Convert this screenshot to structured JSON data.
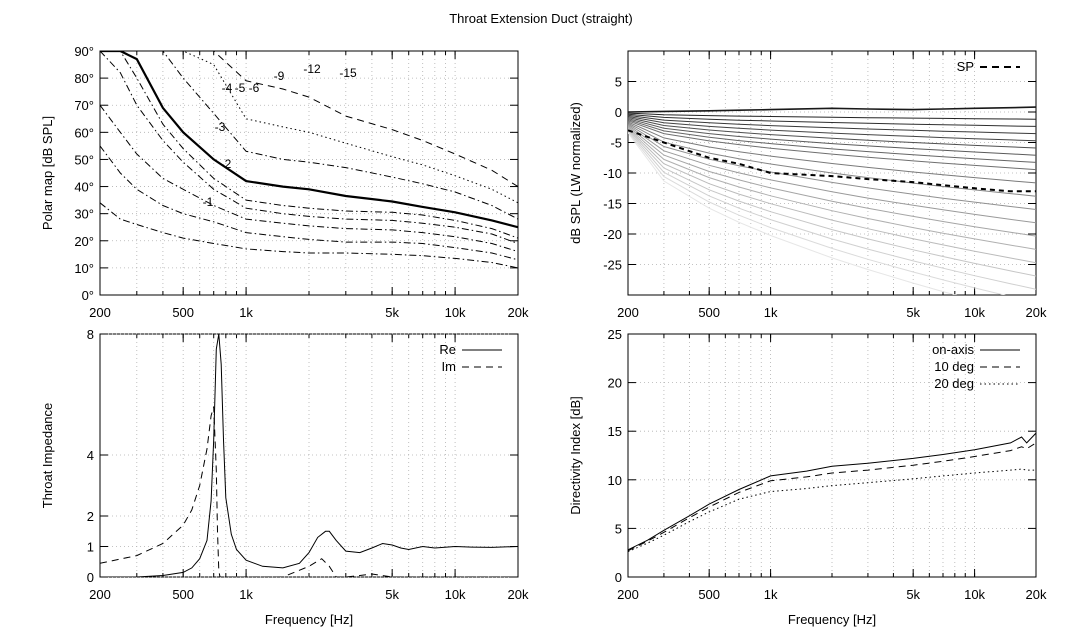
{
  "title": "Throat Extension Duct (straight)",
  "freq_ticks": [
    {
      "value": 200,
      "label": "200"
    },
    {
      "value": 500,
      "label": "500"
    },
    {
      "value": 1000,
      "label": "1k"
    },
    {
      "value": 5000,
      "label": "5k"
    },
    {
      "value": 10000,
      "label": "10k"
    },
    {
      "value": 20000,
      "label": "20k"
    }
  ],
  "chart_data": [
    {
      "id": "polar",
      "type": "heatmap",
      "title": "",
      "xlabel": "",
      "ylabel": "Polar map [dB SPL]",
      "xscale": "log",
      "xlim": [
        200,
        20000
      ],
      "ylim": [
        0,
        90
      ],
      "yticks": [
        {
          "value": 0,
          "label": "0°"
        },
        {
          "value": 10,
          "label": "10°"
        },
        {
          "value": 20,
          "label": "20°"
        },
        {
          "value": 30,
          "label": "30°"
        },
        {
          "value": 40,
          "label": "40°"
        },
        {
          "value": 50,
          "label": "50°"
        },
        {
          "value": 60,
          "label": "60°"
        },
        {
          "value": 70,
          "label": "70°"
        },
        {
          "value": 80,
          "label": "80°"
        },
        {
          "value": 90,
          "label": "90°"
        }
      ],
      "grid": true,
      "x": [
        200,
        250,
        300,
        400,
        500,
        700,
        1000,
        1500,
        2000,
        3000,
        5000,
        7000,
        10000,
        15000,
        20000
      ],
      "contours": [
        {
          "label": "-1",
          "style": "dashdot",
          "values": [
            34,
            28,
            26,
            23,
            21,
            19,
            17,
            16,
            15.5,
            15.5,
            15,
            14.5,
            13.5,
            12,
            10
          ]
        },
        {
          "label": "-2",
          "style": "dashdot",
          "values": [
            55,
            45,
            39,
            33,
            30,
            27,
            23,
            21.5,
            20.5,
            19.5,
            19.5,
            19,
            17.5,
            15.5,
            13
          ]
        },
        {
          "label": "-3",
          "style": "dashdot",
          "values": [
            70,
            60,
            52,
            43,
            39,
            33,
            28,
            26.5,
            25.5,
            24.5,
            24,
            23,
            21.5,
            19,
            16
          ]
        },
        {
          "label": "-4",
          "style": "dashdot",
          "values": [
            90,
            82,
            70,
            57,
            49,
            39,
            32,
            30,
            29,
            28,
            27.5,
            26.5,
            25,
            22.5,
            19
          ]
        },
        {
          "label": "-5",
          "style": "dashdot",
          "values": [
            90,
            90,
            80,
            63,
            54,
            43,
            35,
            33,
            32,
            31,
            30.5,
            29.5,
            27.5,
            24.5,
            21
          ]
        },
        {
          "label": "-6",
          "style": "thick",
          "values": [
            90,
            90,
            87,
            69,
            60,
            50,
            42,
            40,
            39,
            36.5,
            34.5,
            32.5,
            30.5,
            27.5,
            25
          ]
        },
        {
          "label": "-9",
          "style": "dashdot",
          "values": [
            90,
            90,
            90,
            90,
            80,
            67,
            53,
            50,
            49,
            47,
            43.5,
            41,
            38,
            33,
            28
          ]
        },
        {
          "label": "-12",
          "style": "dotted",
          "values": [
            90,
            90,
            90,
            90,
            90,
            85,
            65,
            62,
            60,
            56,
            51,
            48,
            44,
            39,
            34
          ]
        },
        {
          "label": "-15",
          "style": "dashed",
          "values": [
            90,
            90,
            90,
            90,
            90,
            90,
            79,
            76,
            73,
            66,
            61,
            57,
            52,
            46,
            40
          ]
        }
      ]
    },
    {
      "id": "spl",
      "type": "line",
      "title": "",
      "xlabel": "",
      "ylabel": "dB SPL (LW normalized)",
      "xscale": "log",
      "xlim": [
        200,
        20000
      ],
      "ylim": [
        -30,
        10
      ],
      "yticks": [
        {
          "value": 5,
          "label": "5"
        },
        {
          "value": 0,
          "label": "0"
        },
        {
          "value": -5,
          "label": "-5"
        },
        {
          "value": -10,
          "label": "-10"
        },
        {
          "value": -15,
          "label": "-15"
        },
        {
          "value": -20,
          "label": "-20"
        },
        {
          "value": -25,
          "label": "-25"
        }
      ],
      "grid": true,
      "legend": "top-right",
      "x": [
        200,
        300,
        500,
        700,
        1000,
        2000,
        3000,
        5000,
        7000,
        10000,
        15000,
        20000
      ],
      "on_axis": [
        0,
        0.1,
        0.2,
        0.3,
        0.4,
        0.6,
        0.5,
        0.4,
        0.5,
        0.6,
        0.7,
        0.8
      ],
      "off_axis_end_db": [
        0,
        -1,
        -2,
        -3,
        -4,
        -5,
        -6,
        -7,
        -8,
        -10,
        -12,
        -14,
        -16,
        -18,
        -20,
        -22,
        -24,
        -26,
        -28,
        -30
      ],
      "series": [
        {
          "name": "SP",
          "style": "dashed",
          "values": [
            -3,
            -5,
            -7.5,
            -8.5,
            -10,
            -10.5,
            -11,
            -11.5,
            -12,
            -12.5,
            -13,
            -13
          ]
        }
      ]
    },
    {
      "id": "impedance",
      "type": "line",
      "title": "",
      "xlabel": "Frequency [Hz]",
      "ylabel": "Throat Impedance",
      "xscale": "log",
      "xlim": [
        200,
        20000
      ],
      "ylim": [
        0,
        8
      ],
      "yticks": [
        {
          "value": 0,
          "label": "0"
        },
        {
          "value": 1,
          "label": "1"
        },
        {
          "value": 2,
          "label": "2"
        },
        {
          "value": 4,
          "label": "4"
        },
        {
          "value": 8,
          "label": "8"
        }
      ],
      "grid": true,
      "legend": "top-right",
      "series": [
        {
          "name": "Re",
          "style": "solid",
          "x": [
            200,
            300,
            400,
            500,
            550,
            600,
            650,
            680,
            700,
            720,
            740,
            760,
            780,
            800,
            850,
            900,
            1000,
            1200,
            1500,
            1800,
            2000,
            2200,
            2400,
            2500,
            2700,
            3000,
            3500,
            4000,
            4500,
            5000,
            5500,
            6000,
            7000,
            8000,
            10000,
            12000,
            15000,
            20000
          ],
          "values": [
            0,
            0,
            0.05,
            0.15,
            0.3,
            0.6,
            1.2,
            2.5,
            4.5,
            7.5,
            8,
            7,
            4.5,
            2.6,
            1.4,
            0.9,
            0.55,
            0.35,
            0.3,
            0.45,
            0.8,
            1.3,
            1.5,
            1.5,
            1.2,
            0.85,
            0.8,
            0.95,
            1.1,
            1.05,
            0.95,
            0.9,
            1,
            0.95,
            1,
            0.98,
            0.97,
            1
          ]
        },
        {
          "name": "Im",
          "style": "dashed",
          "x": [
            200,
            300,
            400,
            500,
            550,
            600,
            650,
            680,
            700,
            720,
            730,
            740,
            750,
            760,
            800,
            1000,
            1500,
            2000,
            2300,
            2500,
            2700,
            3000,
            3500,
            4000,
            5000,
            7000,
            10000,
            20000
          ],
          "values": [
            0.45,
            0.7,
            1.1,
            1.7,
            2.2,
            3,
            4.2,
            5.3,
            5.6,
            3.5,
            1.5,
            0.2,
            0,
            0,
            0,
            0,
            0,
            0.35,
            0.6,
            0.35,
            0,
            0,
            0.05,
            0.1,
            0,
            0,
            0,
            0
          ]
        }
      ]
    },
    {
      "id": "di",
      "type": "line",
      "title": "",
      "xlabel": "Frequency [Hz]",
      "ylabel": "Directivity Index [dB]",
      "xscale": "log",
      "xlim": [
        200,
        20000
      ],
      "ylim": [
        0,
        25
      ],
      "yticks": [
        {
          "value": 0,
          "label": "0"
        },
        {
          "value": 5,
          "label": "5"
        },
        {
          "value": 10,
          "label": "10"
        },
        {
          "value": 15,
          "label": "15"
        },
        {
          "value": 20,
          "label": "20"
        },
        {
          "value": 25,
          "label": "25"
        }
      ],
      "grid": true,
      "legend": "top-right",
      "x": [
        200,
        250,
        300,
        400,
        500,
        700,
        1000,
        1500,
        2000,
        3000,
        5000,
        7000,
        10000,
        15000,
        17000,
        18000,
        20000
      ],
      "series": [
        {
          "name": "on-axis",
          "style": "solid",
          "values": [
            2.8,
            3.8,
            4.8,
            6.3,
            7.5,
            9,
            10.4,
            10.9,
            11.4,
            11.7,
            12.2,
            12.6,
            13.1,
            13.8,
            14.4,
            13.8,
            14.8
          ]
        },
        {
          "name": "10 deg",
          "style": "dashed",
          "values": [
            2.7,
            3.7,
            4.6,
            6.1,
            7.2,
            8.7,
            9.9,
            10.3,
            10.7,
            11.0,
            11.5,
            11.9,
            12.4,
            13.0,
            13.4,
            13.2,
            13.8
          ]
        },
        {
          "name": "20 deg",
          "style": "dotted",
          "values": [
            2.6,
            3.5,
            4.3,
            5.7,
            6.7,
            8.0,
            8.8,
            9.1,
            9.4,
            9.7,
            10.1,
            10.4,
            10.7,
            11.0,
            11.1,
            11.0,
            11.0
          ]
        }
      ]
    }
  ]
}
